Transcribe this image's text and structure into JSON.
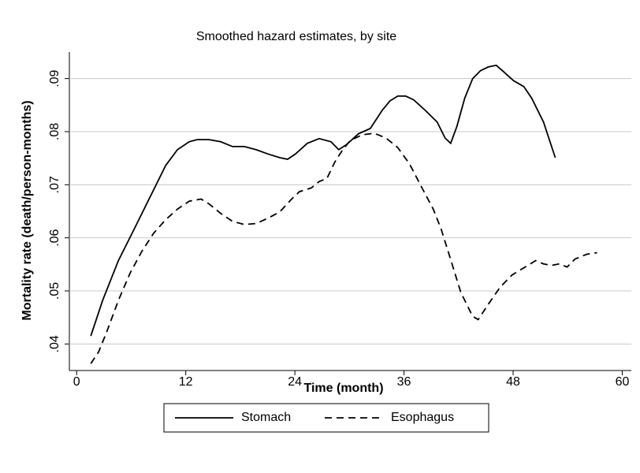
{
  "chart_data": {
    "type": "line",
    "title": "Smoothed hazard estimates, by site",
    "x_label": "Time (month)",
    "y_label": "Mortality rate (death/person-months)",
    "xlim": [
      -0.8,
      61
    ],
    "ylim": [
      0.035,
      0.095
    ],
    "xticks": [
      0,
      12,
      24,
      36,
      48,
      60
    ],
    "yticks": [
      {
        "value": 0.04,
        "label": ".04"
      },
      {
        "value": 0.05,
        "label": ".05"
      },
      {
        "value": 0.06,
        "label": ".06"
      },
      {
        "value": 0.07,
        "label": ".07"
      },
      {
        "value": 0.08,
        "label": ".08"
      },
      {
        "value": 0.09,
        "label": ".09"
      }
    ],
    "grid": true,
    "legend": "bottom",
    "series": [
      {
        "name": "Stomach",
        "color": "#000000",
        "dash": "solid",
        "x": [
          1.56,
          2.86,
          4.59,
          6.32,
          8.05,
          9.78,
          11.08,
          12.38,
          13.25,
          14.55,
          15.84,
          17.14,
          18.44,
          19.74,
          21.04,
          22.34,
          23.2,
          24.07,
          25.37,
          26.67,
          27.97,
          28.83,
          29.7,
          30.99,
          32.29,
          33.59,
          34.46,
          35.32,
          36.19,
          37.06,
          38.35,
          39.65,
          40.52,
          41.13,
          41.82,
          42.68,
          43.55,
          44.42,
          45.28,
          46.15,
          47.01,
          48.05,
          49.18,
          50.04,
          51.34,
          52.64
        ],
        "values": [
          0.0415,
          0.0482,
          0.0557,
          0.0616,
          0.0676,
          0.0736,
          0.0766,
          0.0781,
          0.0785,
          0.0785,
          0.0781,
          0.0772,
          0.0772,
          0.0766,
          0.0758,
          0.0751,
          0.0748,
          0.0758,
          0.0778,
          0.0787,
          0.0781,
          0.0766,
          0.0776,
          0.0796,
          0.0806,
          0.084,
          0.0858,
          0.0867,
          0.0867,
          0.086,
          0.084,
          0.0818,
          0.0788,
          0.0778,
          0.081,
          0.0863,
          0.09,
          0.0915,
          0.0922,
          0.0925,
          0.0912,
          0.0896,
          0.0885,
          0.0863,
          0.0818,
          0.0751
        ]
      },
      {
        "name": "Esophagus",
        "color": "#000000",
        "dash": "dashed",
        "x": [
          1.56,
          2.42,
          3.29,
          4.59,
          5.89,
          7.19,
          8.48,
          9.78,
          11.08,
          12.38,
          13.68,
          14.55,
          15.84,
          17.14,
          18.44,
          19.74,
          21.04,
          22.34,
          23.64,
          24.5,
          25.8,
          26.67,
          27.53,
          28.4,
          29.26,
          30.13,
          31.43,
          32.73,
          34.03,
          35.32,
          36.62,
          37.92,
          39.22,
          40.09,
          40.95,
          42.25,
          43.55,
          44.16,
          45.28,
          46.58,
          47.88,
          48.74,
          49.61,
          50.48,
          51.34,
          52.21,
          53.07,
          53.94,
          54.81,
          56.1,
          57.23
        ],
        "values": [
          0.0363,
          0.0385,
          0.0422,
          0.0482,
          0.0534,
          0.0575,
          0.0609,
          0.0634,
          0.0654,
          0.0669,
          0.0673,
          0.0664,
          0.0646,
          0.0631,
          0.0625,
          0.0627,
          0.0637,
          0.0649,
          0.0673,
          0.0687,
          0.0694,
          0.0706,
          0.0712,
          0.0743,
          0.0766,
          0.0784,
          0.0794,
          0.0797,
          0.0788,
          0.077,
          0.0739,
          0.0696,
          0.0654,
          0.0616,
          0.0569,
          0.0497,
          0.0452,
          0.0446,
          0.0475,
          0.0507,
          0.053,
          0.0539,
          0.0548,
          0.0557,
          0.0551,
          0.0548,
          0.0551,
          0.0545,
          0.056,
          0.0569,
          0.0572
        ]
      }
    ]
  }
}
